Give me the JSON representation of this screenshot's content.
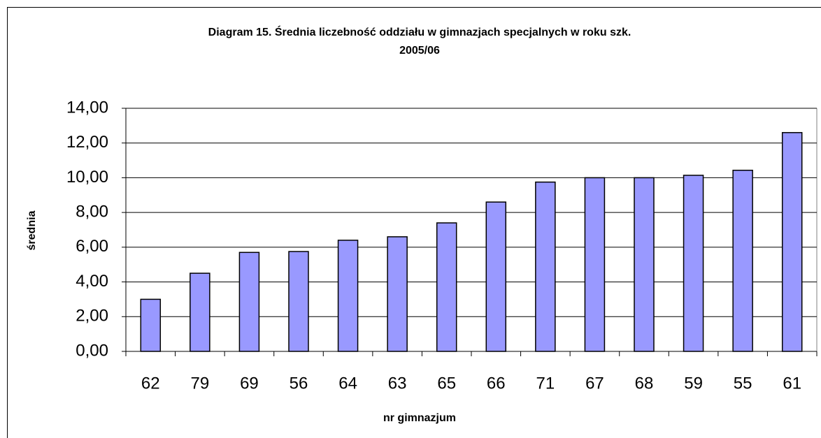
{
  "chart_data": {
    "type": "bar",
    "title": [
      "Diagram 15. Średnia liczebność oddziału w gimnazjach specjalnych w roku szk.",
      "2005/06"
    ],
    "x_label": "nr gimnazjum",
    "y_label": "średnia",
    "categories": [
      "62",
      "79",
      "69",
      "56",
      "64",
      "63",
      "65",
      "66",
      "71",
      "67",
      "68",
      "59",
      "55",
      "61"
    ],
    "values": [
      3.0,
      4.5,
      5.7,
      5.75,
      6.4,
      6.6,
      7.4,
      8.6,
      9.75,
      10.0,
      10.0,
      10.14,
      10.43,
      12.6
    ],
    "color": "#9999ff",
    "ylim": [
      0,
      14
    ],
    "yticks": [
      {
        "value": 0,
        "label": "0,00"
      },
      {
        "value": 2,
        "label": "2,00"
      },
      {
        "value": 4,
        "label": "4,00"
      },
      {
        "value": 6,
        "label": "6,00"
      },
      {
        "value": 8,
        "label": "8,00"
      },
      {
        "value": 10,
        "label": "10,00"
      },
      {
        "value": 12,
        "label": "12,00"
      },
      {
        "value": 14,
        "label": "14,00"
      }
    ],
    "grid": true
  }
}
